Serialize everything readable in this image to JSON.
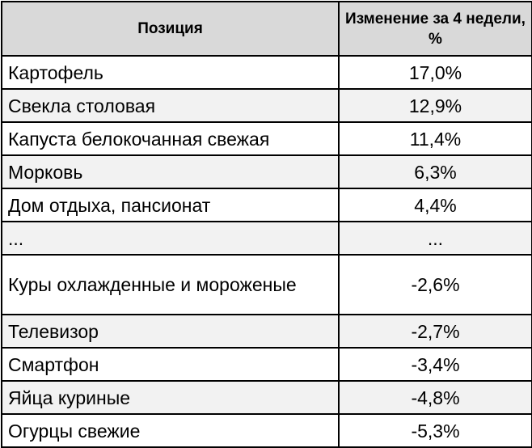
{
  "table": {
    "headers": {
      "position": "Позиция",
      "change": "Изменение за 4 недели, %"
    },
    "rows": [
      {
        "position": "Картофель",
        "change": "17,0%"
      },
      {
        "position": "Свекла столовая",
        "change": "12,9%"
      },
      {
        "position": "Капуста белокочанная свежая",
        "change": "11,4%"
      },
      {
        "position": "Морковь",
        "change": "6,3%"
      },
      {
        "position": "Дом отдыха, пансионат",
        "change": "4,4%"
      },
      {
        "position": "...",
        "change": "..."
      },
      {
        "position": "Куры охлажденные и мороженые",
        "change": "-2,6%"
      },
      {
        "position": "Телевизор",
        "change": "-2,7%"
      },
      {
        "position": "Смартфон",
        "change": "-3,4%"
      },
      {
        "position": "Яйца куриные",
        "change": "-4,8%"
      },
      {
        "position": "Огурцы свежие",
        "change": "-5,3%"
      }
    ]
  }
}
